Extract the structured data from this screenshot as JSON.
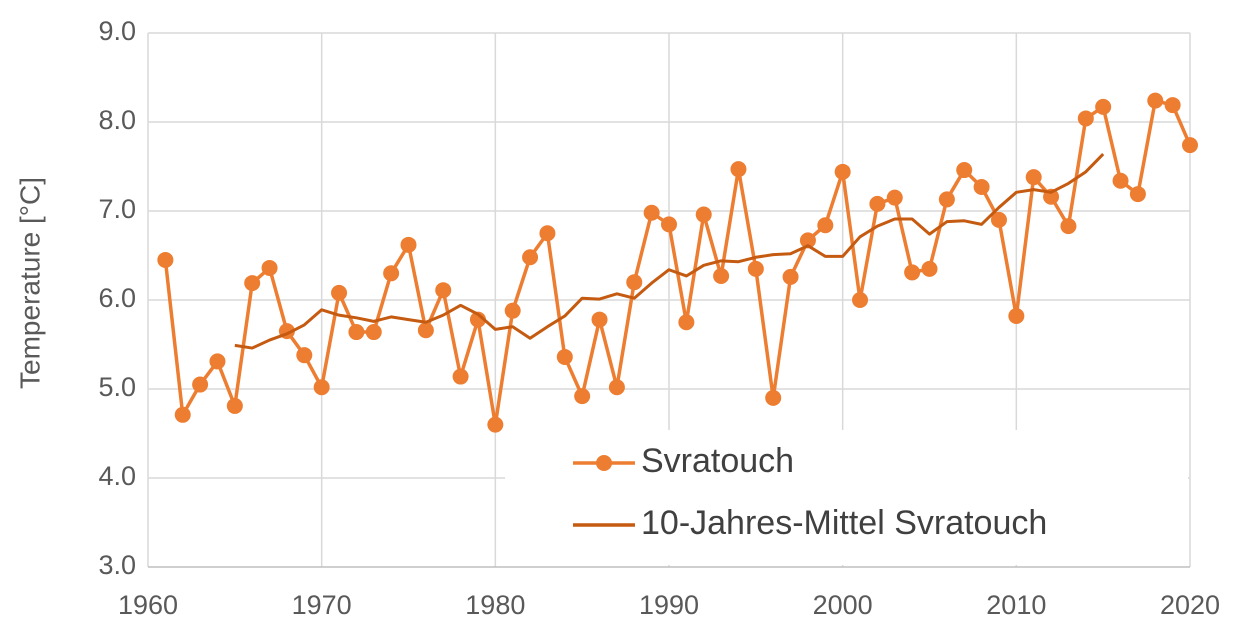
{
  "chart_data": {
    "type": "line",
    "y_label": "Temperature [°C]",
    "x": [
      1961,
      1962,
      1963,
      1964,
      1965,
      1966,
      1967,
      1968,
      1969,
      1970,
      1971,
      1972,
      1973,
      1974,
      1975,
      1976,
      1977,
      1978,
      1979,
      1980,
      1981,
      1982,
      1983,
      1984,
      1985,
      1986,
      1987,
      1988,
      1989,
      1990,
      1991,
      1992,
      1993,
      1994,
      1995,
      1996,
      1997,
      1998,
      1999,
      2000,
      2001,
      2002,
      2003,
      2004,
      2005,
      2006,
      2007,
      2008,
      2009,
      2010,
      2011,
      2012,
      2013,
      2014,
      2015,
      2016,
      2017,
      2018,
      2019,
      2020
    ],
    "series": [
      {
        "name": "Svratouch",
        "color": "#ED7D31",
        "markers": true,
        "values": [
          6.45,
          4.71,
          5.05,
          5.31,
          4.81,
          6.19,
          6.36,
          5.65,
          5.38,
          5.02,
          6.08,
          5.64,
          5.64,
          6.3,
          6.62,
          5.66,
          6.11,
          5.14,
          5.78,
          4.6,
          5.88,
          6.48,
          6.75,
          5.36,
          4.92,
          5.78,
          5.02,
          6.2,
          6.98,
          6.85,
          5.75,
          6.96,
          6.27,
          7.47,
          6.35,
          4.9,
          6.26,
          6.67,
          6.84,
          7.44,
          6.0,
          7.08,
          7.15,
          6.31,
          6.35,
          7.13,
          7.46,
          7.27,
          6.9,
          5.82,
          7.38,
          7.16,
          6.83,
          8.04,
          8.17,
          7.34,
          7.19,
          8.24,
          8.19,
          7.74
        ]
      },
      {
        "name": "10-Jahres-Mittel Svratouch",
        "color": "#C55A11",
        "markers": false,
        "values": [
          null,
          null,
          null,
          null,
          5.49,
          5.46,
          5.55,
          5.62,
          5.72,
          5.89,
          5.83,
          5.8,
          5.76,
          5.81,
          5.78,
          5.75,
          5.83,
          5.94,
          5.84,
          5.67,
          5.7,
          5.57,
          5.7,
          5.82,
          6.02,
          6.01,
          6.07,
          6.02,
          6.19,
          6.34,
          6.27,
          6.39,
          6.44,
          6.43,
          6.48,
          6.51,
          6.52,
          6.61,
          6.49,
          6.49,
          6.71,
          6.83,
          6.91,
          6.91,
          6.74,
          6.88,
          6.89,
          6.85,
          7.04,
          7.21,
          7.24,
          7.21,
          7.31,
          7.44,
          7.64,
          null,
          null,
          null,
          null,
          null
        ]
      }
    ],
    "xlim": [
      1960,
      2020
    ],
    "xticks": [
      1960,
      1970,
      1980,
      1990,
      2000,
      2010,
      2020
    ],
    "ylim": [
      3,
      9
    ],
    "yticks": [
      {
        "value": 3,
        "label": "3.0"
      },
      {
        "value": 4,
        "label": "4.0"
      },
      {
        "value": 5,
        "label": "5.0"
      },
      {
        "value": 6,
        "label": "6.0"
      },
      {
        "value": 7,
        "label": "7.0"
      },
      {
        "value": 8,
        "label": "8.0"
      },
      {
        "value": 9,
        "label": "9.0"
      }
    ],
    "grid": true,
    "legend": "lower-right"
  }
}
